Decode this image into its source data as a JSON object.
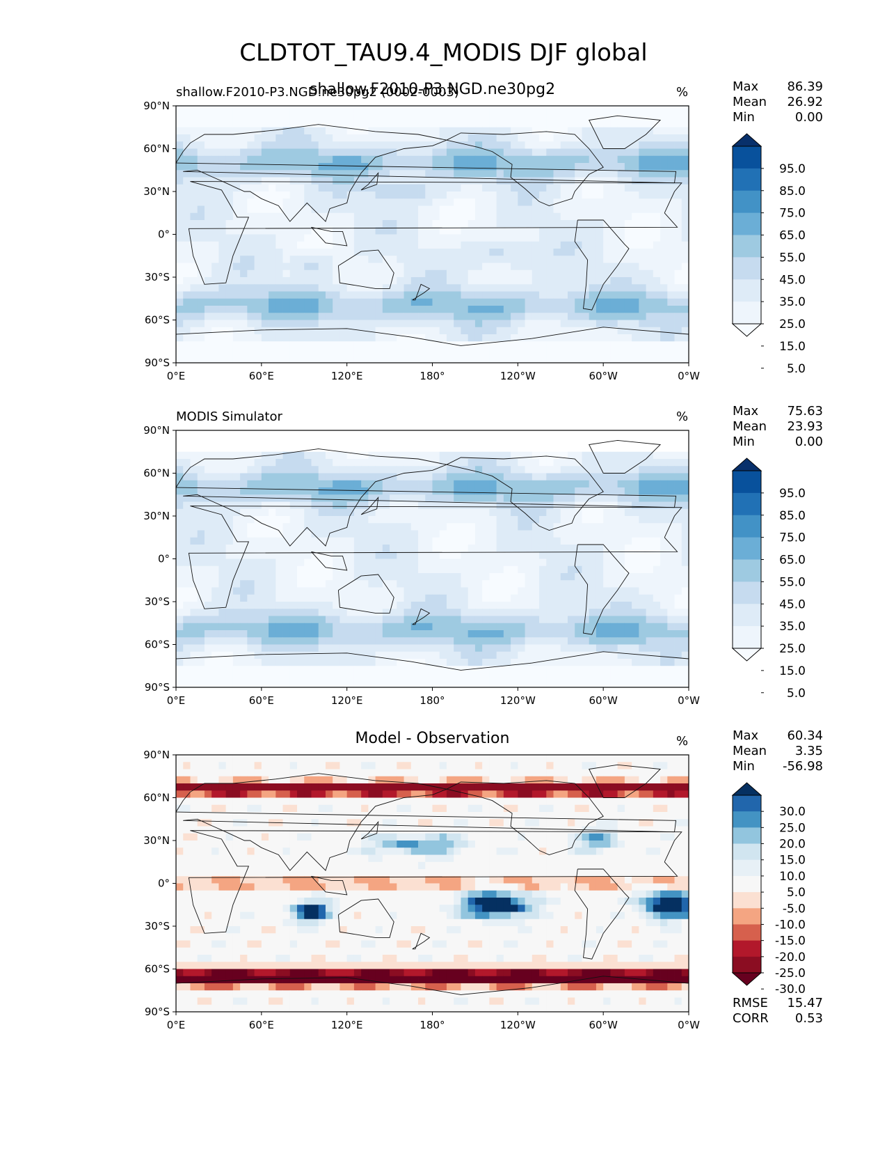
{
  "title": "CLDTOT_TAU9.4_MODIS DJF global",
  "chart_data": [
    {
      "type": "heatmap",
      "name": "test",
      "title_left": "shallow.F2010-P3.NGD.ne30pg2 (0002-0003)",
      "title_center": "shallow.F2010-P3.NGD.ne30pg2",
      "units": "%",
      "stats": {
        "max_label": "Max",
        "max": "86.39",
        "mean_label": "Mean",
        "mean": "26.92",
        "min_label": "Min",
        "min": "0.00"
      },
      "xticks": [
        "0°E",
        "60°E",
        "120°E",
        "180°",
        "120°W",
        "60°W",
        "0°W"
      ],
      "yticks": [
        "90°N",
        "60°N",
        "30°N",
        "0°",
        "30°S",
        "60°S",
        "90°S"
      ],
      "xlim": [
        0,
        360
      ],
      "ylim": [
        -90,
        90
      ],
      "colorbar_levels": [
        "95.0",
        "85.0",
        "75.0",
        "65.0",
        "55.0",
        "45.0",
        "35.0",
        "25.0",
        "15.0",
        "5.0"
      ],
      "colorbar_colors": [
        "#08306b",
        "#08519c",
        "#2171b5",
        "#4292c6",
        "#6baed6",
        "#9ecae1",
        "#c6dbef",
        "#deebf7",
        "#eef5fc",
        "#f7fbff"
      ]
    },
    {
      "type": "heatmap",
      "name": "reference",
      "title_left": "MODIS Simulator",
      "title_center": "",
      "units": "%",
      "stats": {
        "max_label": "Max",
        "max": "75.63",
        "mean_label": "Mean",
        "mean": "23.93",
        "min_label": "Min",
        "min": "0.00"
      },
      "xticks": [
        "0°E",
        "60°E",
        "120°E",
        "180°",
        "120°W",
        "60°W",
        "0°W"
      ],
      "yticks": [
        "90°N",
        "60°N",
        "30°N",
        "0°",
        "30°S",
        "60°S",
        "90°S"
      ],
      "xlim": [
        0,
        360
      ],
      "ylim": [
        -90,
        90
      ],
      "colorbar_levels": [
        "95.0",
        "85.0",
        "75.0",
        "65.0",
        "55.0",
        "45.0",
        "35.0",
        "25.0",
        "15.0",
        "5.0"
      ],
      "colorbar_colors": [
        "#08306b",
        "#08519c",
        "#2171b5",
        "#4292c6",
        "#6baed6",
        "#9ecae1",
        "#c6dbef",
        "#deebf7",
        "#eef5fc",
        "#f7fbff"
      ]
    },
    {
      "type": "heatmap",
      "name": "difference",
      "title_left": "",
      "title_center": "Model - Observation",
      "units": "%",
      "stats": {
        "max_label": "Max",
        "max": "60.34",
        "mean_label": "Mean",
        "mean": "3.35",
        "min_label": "Min",
        "min": "-56.98"
      },
      "extra_stats": {
        "rmse_label": "RMSE",
        "rmse": "15.47",
        "corr_label": "CORR",
        "corr": "0.53"
      },
      "xticks": [
        "0°E",
        "60°E",
        "120°E",
        "180°",
        "120°W",
        "60°W",
        "0°W"
      ],
      "yticks": [
        "90°N",
        "60°N",
        "30°N",
        "0°",
        "30°S",
        "60°S",
        "90°S"
      ],
      "xlim": [
        0,
        360
      ],
      "ylim": [
        -90,
        90
      ],
      "colorbar_levels": [
        "30.0",
        "25.0",
        "20.0",
        "15.0",
        "10.0",
        "5.0",
        "-5.0",
        "-10.0",
        "-15.0",
        "-20.0",
        "-25.0",
        "-30.0"
      ],
      "colorbar_colors": [
        "#053061",
        "#2166ac",
        "#4393c3",
        "#92c5de",
        "#d1e5f0",
        "#e7f0f6",
        "#f7f7f7",
        "#fbe0d2",
        "#f4a582",
        "#d6604d",
        "#b2182b",
        "#8b0d22",
        "#67001f"
      ]
    }
  ]
}
